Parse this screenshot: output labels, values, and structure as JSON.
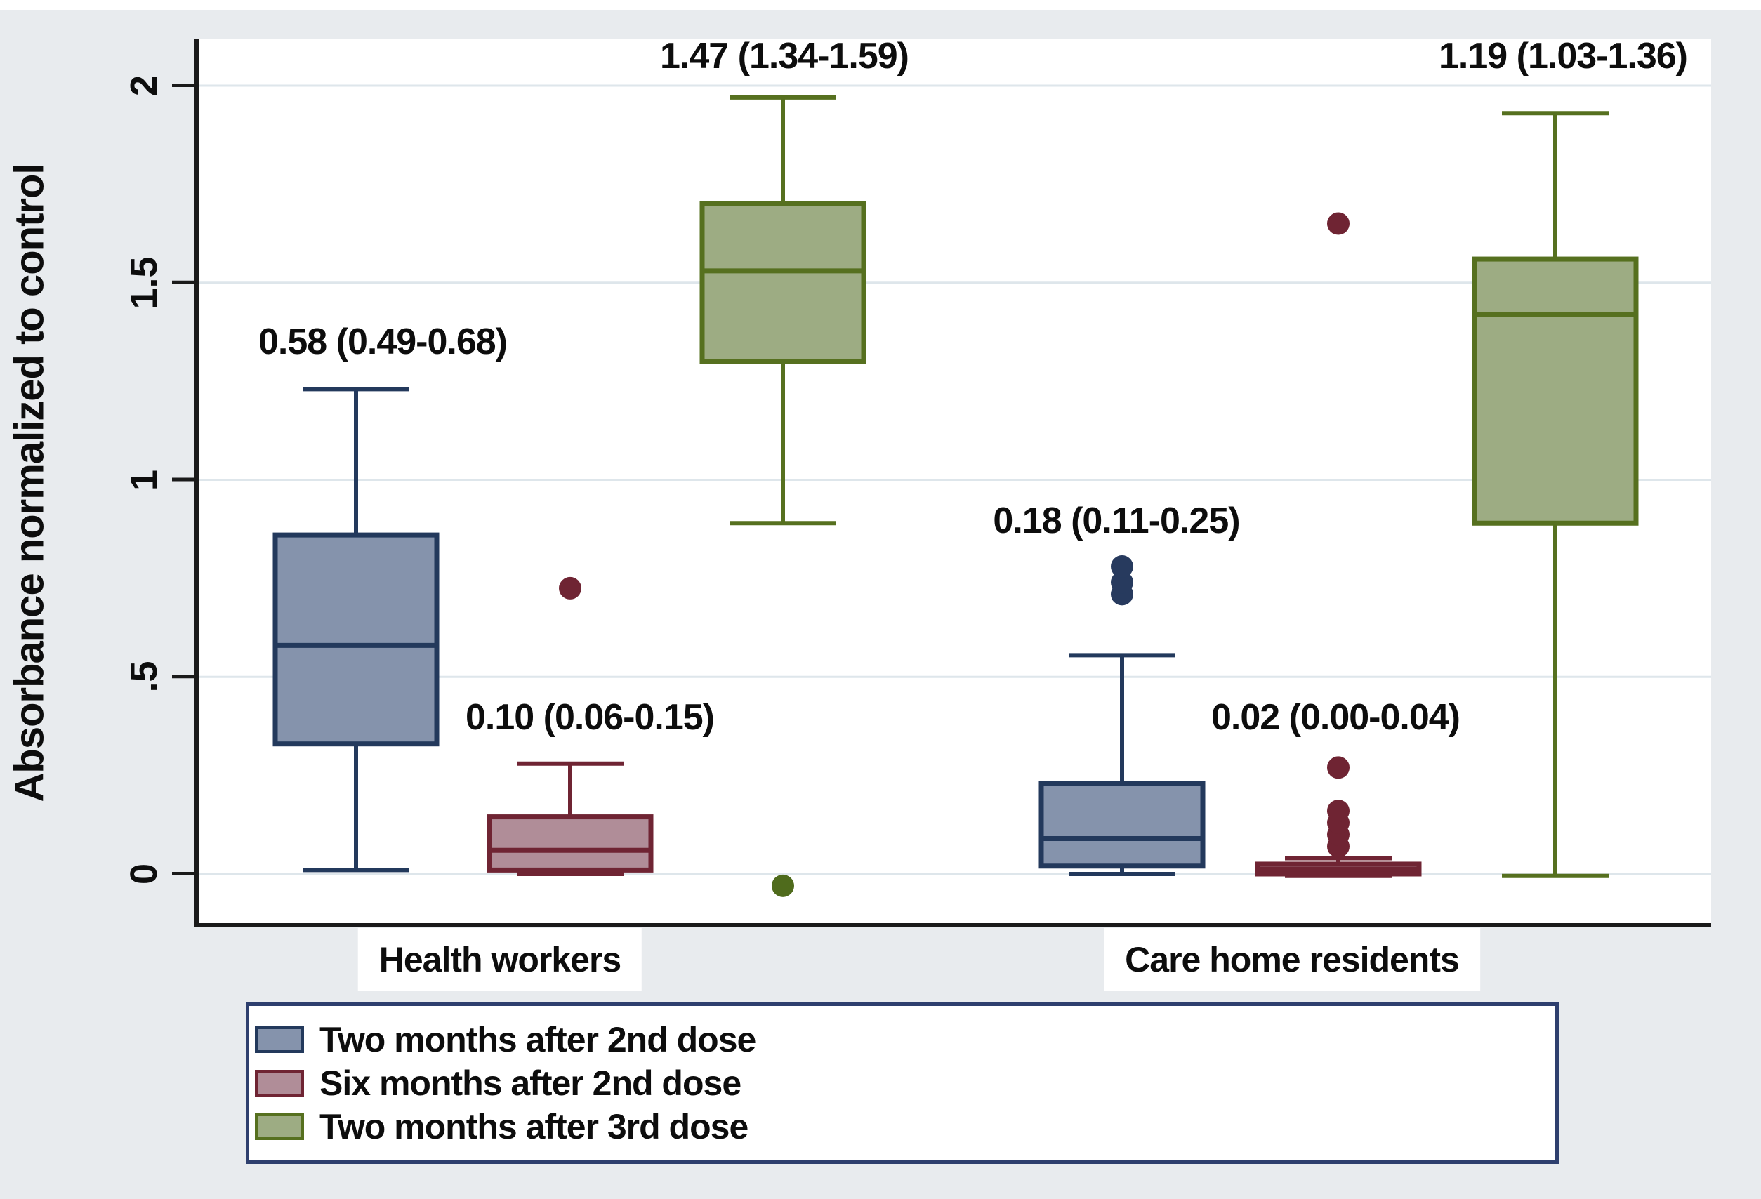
{
  "figure": {
    "background_color": "#e8ebee",
    "plot_background_color": "#ffffff",
    "gridline_color": "#dee6eb",
    "axis_color": "#1a1a1a"
  },
  "chart_data": {
    "type": "box",
    "title": "",
    "xlabel": "",
    "ylabel": "Absorbance normalized to control",
    "ylim": [
      -0.12,
      2.12
    ],
    "grid": "horizontal",
    "legend_position": "bottom-left",
    "yticks": [
      {
        "label": "0",
        "value": 0
      },
      {
        "label": ".5",
        "value": 0.5
      },
      {
        "label": "1",
        "value": 1
      },
      {
        "label": "1.5",
        "value": 1.5
      },
      {
        "label": "2",
        "value": 2
      }
    ],
    "categories": [
      "Health workers",
      "Care home residents"
    ],
    "series": [
      {
        "name": "Two months after 2nd dose",
        "fill": "#8593ac",
        "stroke": "#23395c",
        "outlier_color": "#273a5e",
        "boxes": [
          {
            "group": "Health workers",
            "annotation": "0.58 (0.49-0.68)",
            "whisker_low": 0.01,
            "q1": 0.33,
            "median": 0.58,
            "q3": 0.86,
            "whisker_high": 1.23,
            "outliers": []
          },
          {
            "group": "Care home residents",
            "annotation": "0.18 (0.11-0.25)",
            "whisker_low": 0.0,
            "q1": 0.02,
            "median": 0.09,
            "q3": 0.23,
            "whisker_high": 0.555,
            "outliers": [
              0.71,
              0.74,
              0.78
            ]
          }
        ]
      },
      {
        "name": "Six months after 2nd dose",
        "fill": "#b08d98",
        "stroke": "#6f2433",
        "outlier_color": "#6f2433",
        "boxes": [
          {
            "group": "Health workers",
            "annotation": "0.10 (0.06-0.15)",
            "whisker_low": 0.0,
            "q1": 0.01,
            "median": 0.06,
            "q3": 0.145,
            "whisker_high": 0.28,
            "outliers": [
              0.725
            ]
          },
          {
            "group": "Care home residents",
            "annotation": "0.02 (0.00-0.04)",
            "whisker_low": -0.005,
            "q1": 0.0,
            "median": 0.012,
            "q3": 0.025,
            "whisker_high": 0.04,
            "outliers": [
              0.07,
              0.1,
              0.13,
              0.16,
              0.27,
              1.65
            ]
          }
        ]
      },
      {
        "name": "Two months after 3rd dose",
        "fill": "#9dac83",
        "stroke": "#56701f",
        "outlier_color": "#4f6b1c",
        "boxes": [
          {
            "group": "Health workers",
            "annotation": "1.47 (1.34-1.59)",
            "whisker_low": 0.89,
            "q1": 1.3,
            "median": 1.53,
            "q3": 1.7,
            "whisker_high": 1.97,
            "outliers": [
              -0.03
            ]
          },
          {
            "group": "Care home residents",
            "annotation": "1.19 (1.03-1.36)",
            "whisker_low": -0.005,
            "q1": 0.89,
            "median": 1.42,
            "q3": 1.56,
            "whisker_high": 1.93,
            "outliers": []
          }
        ]
      }
    ]
  },
  "legend": {
    "entries": [
      {
        "label": "Two months after 2nd dose"
      },
      {
        "label": "Six months after 2nd dose"
      },
      {
        "label": "Two months after 3rd dose"
      }
    ]
  }
}
